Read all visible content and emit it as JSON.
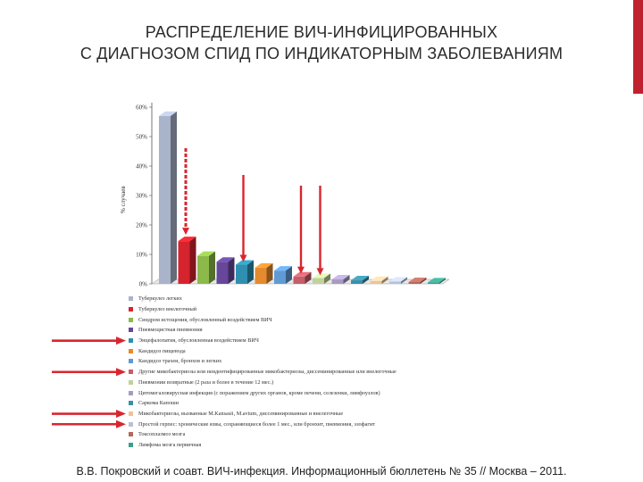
{
  "title": {
    "line1": "РАСПРЕДЕЛЕНИЕ ВИЧ-ИНФИЦИРОВАННЫХ",
    "line2": "С ДИАГНОЗОМ СПИД ПО ИНДИКАТОРНЫМ ЗАБОЛЕВАНИЯМ"
  },
  "source": "В.В. Покровский и соавт. ВИЧ-инфекция. Информационный бюллетень № 35 // Москва – 2011.",
  "colors": {
    "accent": "#c0212e",
    "arrow": "#d8262f"
  },
  "chart_data": {
    "type": "bar",
    "ylabel": "% случаев",
    "ylim": [
      0,
      60
    ],
    "yticks": [
      "0%",
      "10%",
      "20%",
      "30%",
      "40%",
      "50%",
      "60%"
    ],
    "grid": false,
    "legend_position": "bottom",
    "categories": [
      "Туберкулез легких",
      "Туберкулез внелегочный",
      "Синдром истощения, обусловленный воздействием ВИЧ",
      "Пневмоцистная пневмония",
      "Энцефалопатия, обусловленная воздействием ВИЧ",
      "Кандидоз пищевода",
      "Кандидоз трахеи, бронхов и легких",
      "Другие микобактериозы или неидентифицированные микобактериозы, диссеминированные или внелегочные",
      "Пневмонии возвратные (2 раза и более в течение 12 мес.)",
      "Цитомегаловирусная инфекция (с поражением других органов, кроме печени, селезенки, лимфоузлов)",
      "Саркома Капоши",
      "Микобактериозы, вызванные M.Kansasii, M.avium, диссеминированные и внелегочные",
      "Простой герпес: хронические язвы, сохраняющиеся более 1 мес., или бронхит, пневмония, эзофагит",
      "Токсоплазмоз мозга",
      "Лимфома мозга первичная"
    ],
    "values": [
      57,
      14.5,
      9.5,
      7.5,
      6.5,
      5.5,
      4.5,
      2.5,
      2,
      1.5,
      1.2,
      1,
      0.8,
      0.6,
      0.5
    ],
    "bar_colors": [
      "#a9b3c9",
      "#d5242d",
      "#8cba4a",
      "#66479a",
      "#2f8fb0",
      "#e58a2f",
      "#5f9ad4",
      "#c55d6b",
      "#c0d29a",
      "#a89ac3",
      "#3d8ea7",
      "#efc29b",
      "#b7c2d8",
      "#b2695e",
      "#3aa08c"
    ],
    "annotations": [
      "arrow pointing at Туберкулез внелегочный (dashed)",
      "arrow pointing at Энцефалопатия, обусловленная воздействием ВИЧ",
      "arrow pointing at Другие микобактериозы или неидентифицированные микобактериозы",
      "arrow pointing at Пневмонии возвратные",
      "legend arrows at Энцефалопатия, Другие микобактериозы, Микобактериозы M.Kansasii, Простой герпес"
    ],
    "highlighted_legend_items": [
      4,
      7,
      11,
      12
    ]
  }
}
